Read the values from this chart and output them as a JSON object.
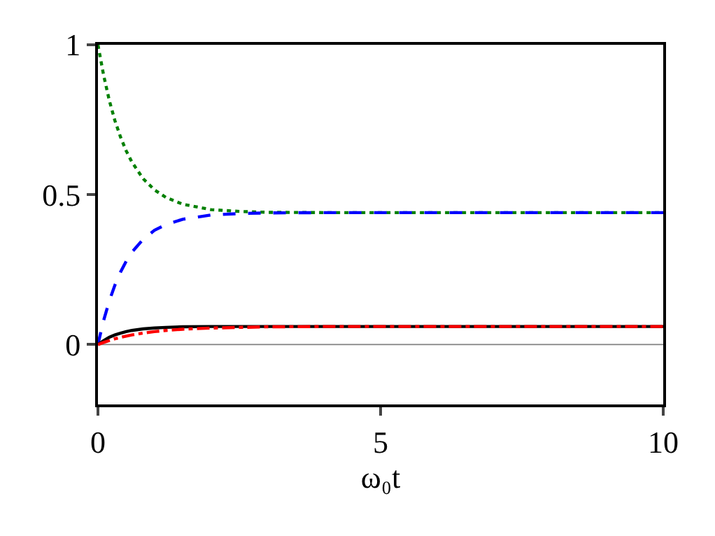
{
  "chart_data": {
    "type": "line",
    "xlabel": "ω₀t",
    "xlim": [
      0,
      10
    ],
    "ylim": [
      -0.2,
      1
    ],
    "xticks": [
      0,
      5,
      10
    ],
    "yticks": [
      0,
      0.5,
      1
    ],
    "grid": false,
    "x": [
      0,
      0.1,
      0.2,
      0.3,
      0.4,
      0.5,
      0.6,
      0.8,
      1,
      1.2,
      1.5,
      2,
      2.5,
      3,
      4,
      5,
      6,
      8,
      10
    ],
    "series": [
      {
        "color": "#008000",
        "line_style": "dotted",
        "values": [
          1,
          0.899,
          0.815,
          0.747,
          0.692,
          0.646,
          0.609,
          0.553,
          0.516,
          0.491,
          0.468,
          0.45,
          0.444,
          0.441,
          0.44,
          0.44,
          0.44,
          0.44,
          0.44
        ]
      },
      {
        "color": "#0000ff",
        "line_style": "dashed",
        "values": [
          0,
          0.08,
          0.145,
          0.198,
          0.242,
          0.278,
          0.308,
          0.351,
          0.381,
          0.4,
          0.418,
          0.432,
          0.437,
          0.439,
          0.44,
          0.44,
          0.44,
          0.44,
          0.44
        ]
      },
      {
        "color": "#000000",
        "line_style": "solid",
        "values": [
          0,
          0.013,
          0.024,
          0.032,
          0.038,
          0.043,
          0.047,
          0.052,
          0.055,
          0.057,
          0.059,
          0.06,
          0.06,
          0.06,
          0.06,
          0.06,
          0.06,
          0.06,
          0.06
        ]
      },
      {
        "color": "#ff0000",
        "line_style": "dashdot",
        "values": [
          0,
          0.007,
          0.013,
          0.019,
          0.024,
          0.028,
          0.032,
          0.038,
          0.043,
          0.047,
          0.051,
          0.055,
          0.057,
          0.059,
          0.06,
          0.06,
          0.06,
          0.06,
          0.06
        ]
      }
    ],
    "ref_lines": [
      {
        "axis": "y",
        "value": 0,
        "color": "#808080",
        "line_style": "solid"
      }
    ]
  }
}
